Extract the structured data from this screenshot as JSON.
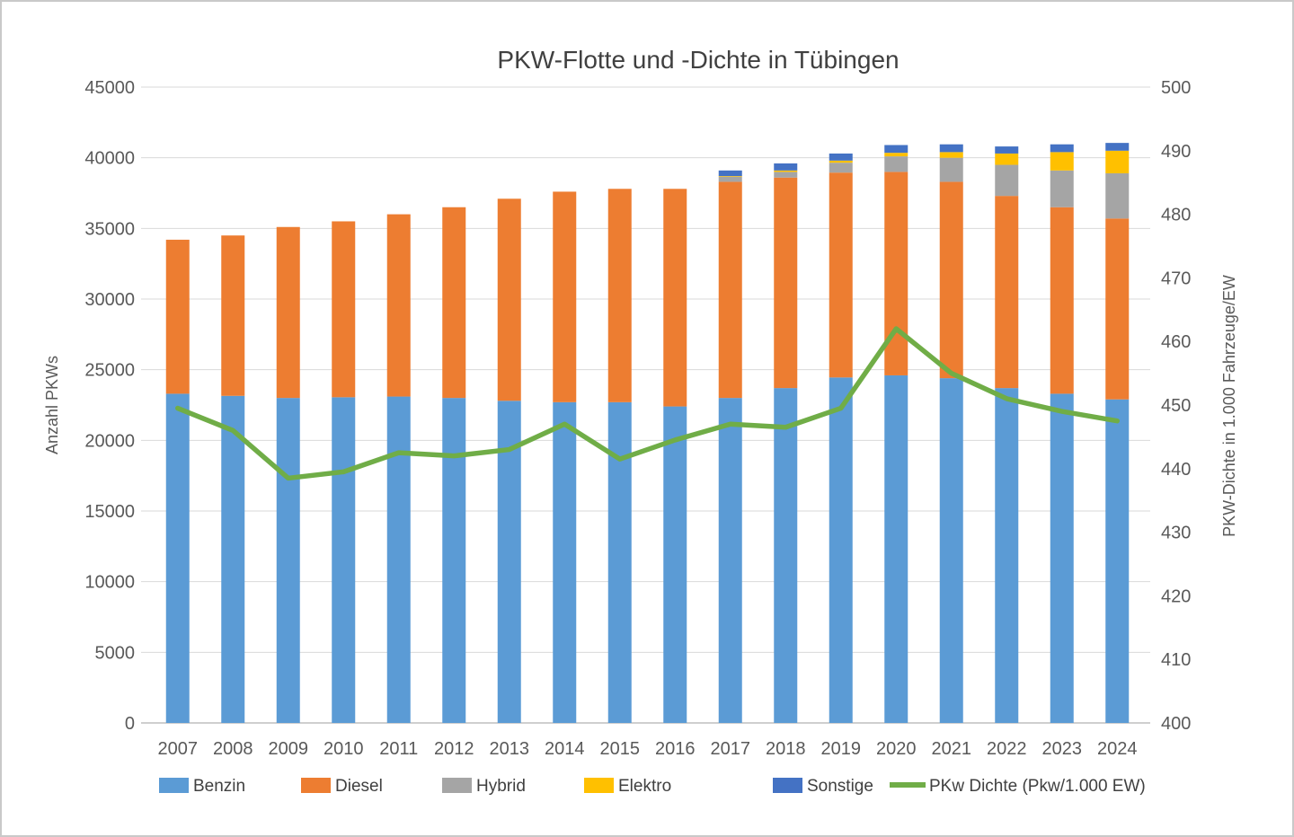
{
  "chart_data": {
    "type": "bar-stacked+line",
    "title": "PKW-Flotte und -Dichte in Tübingen",
    "categories": [
      "2007",
      "2008",
      "2009",
      "2010",
      "2011",
      "2012",
      "2013",
      "2014",
      "2015",
      "2016",
      "2017",
      "2018",
      "2019",
      "2020",
      "2021",
      "2022",
      "2023",
      "2024"
    ],
    "bar_series": [
      {
        "name": "Benzin",
        "color": "#5B9BD5",
        "values": [
          23300,
          23150,
          23000,
          23050,
          23100,
          23000,
          22800,
          22700,
          22700,
          22400,
          23000,
          23700,
          24450,
          24600,
          24400,
          23700,
          23300,
          22900
        ]
      },
      {
        "name": "Diesel",
        "color": "#ED7D31",
        "values": [
          10900,
          11350,
          12100,
          12450,
          12900,
          13500,
          14300,
          14900,
          15100,
          15400,
          15300,
          14900,
          14500,
          14400,
          13900,
          13600,
          13200,
          12800
        ]
      },
      {
        "name": "Hybrid",
        "color": "#A5A5A5",
        "values": [
          0,
          0,
          0,
          0,
          0,
          0,
          0,
          0,
          0,
          0,
          350,
          400,
          700,
          1100,
          1700,
          2200,
          2600,
          3200
        ]
      },
      {
        "name": "Elektro",
        "color": "#FFC000",
        "values": [
          0,
          0,
          0,
          0,
          0,
          0,
          0,
          0,
          0,
          0,
          50,
          100,
          150,
          250,
          400,
          800,
          1300,
          1600
        ]
      },
      {
        "name": "Sonstige",
        "color": "#4472C4",
        "values": [
          0,
          0,
          0,
          0,
          0,
          0,
          0,
          0,
          0,
          0,
          400,
          500,
          500,
          550,
          550,
          500,
          550,
          550
        ]
      }
    ],
    "line_series": {
      "name": "PKw Dichte (Pkw/1.000 EW)",
      "color": "#70AD47",
      "axis": "right",
      "values": [
        449.5,
        446,
        438.5,
        439.5,
        442.5,
        442,
        443,
        447,
        441.5,
        444.5,
        447,
        446.5,
        449.5,
        462,
        455,
        451,
        449,
        447.5
      ]
    },
    "left_axis": {
      "label": "Anzahl PKWs",
      "min": 0,
      "max": 45000,
      "step": 5000,
      "ticks": [
        "0",
        "5000",
        "10000",
        "15000",
        "20000",
        "25000",
        "30000",
        "35000",
        "40000",
        "45000"
      ]
    },
    "right_axis": {
      "label": "PKW-Dichte in 1.000 Fahrzeuge/EW",
      "min": 400,
      "max": 500,
      "step": 10,
      "ticks": [
        "400",
        "410",
        "420",
        "430",
        "440",
        "450",
        "460",
        "470",
        "480",
        "490",
        "500"
      ]
    },
    "grid": true,
    "legend_position": "bottom",
    "colors": {
      "grid": "#D9D9D9",
      "axis_line": "#BFBFBF",
      "tick_text": "#595959",
      "title_text": "#404040"
    }
  }
}
